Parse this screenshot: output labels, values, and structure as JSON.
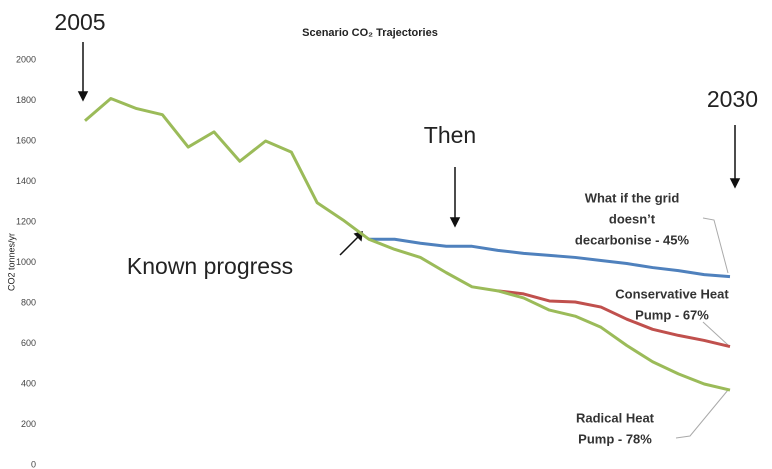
{
  "chart_data": {
    "type": "line",
    "title": "Scenario CO₂ Trajectories",
    "y_label": "CO2 tonnes/yr",
    "categories": [
      null,
      null,
      null,
      null,
      null,
      null,
      null,
      null,
      null,
      null,
      null,
      null,
      null,
      null,
      null,
      null,
      null,
      null,
      null,
      null,
      null,
      null,
      null,
      null,
      null,
      null
    ],
    "ylim": [
      0,
      2000
    ],
    "yticks": [
      0,
      200,
      400,
      600,
      800,
      1000,
      1200,
      1400,
      1600,
      1800,
      2000
    ],
    "series": [
      {
        "color": "#9bbb59",
        "values": [
          1700,
          1810,
          1760,
          1730,
          1570,
          1645,
          1500,
          1600,
          1545,
          1295,
          1210,
          1115,
          1065,
          1025,
          950,
          880,
          860,
          825,
          765,
          735,
          680,
          590,
          510,
          450,
          400,
          370
        ]
      },
      {
        "color": "#4f81bd",
        "values": [
          null,
          null,
          null,
          null,
          null,
          null,
          null,
          null,
          null,
          null,
          null,
          1115,
          1115,
          1095,
          1080,
          1080,
          1060,
          1045,
          1035,
          1025,
          1010,
          995,
          975,
          960,
          940,
          930
        ]
      },
      {
        "color": "#c0504d",
        "values": [
          null,
          null,
          null,
          null,
          null,
          null,
          null,
          null,
          null,
          null,
          null,
          null,
          null,
          null,
          null,
          null,
          860,
          845,
          810,
          805,
          780,
          720,
          670,
          640,
          615,
          585
        ]
      }
    ],
    "annotations": {
      "start": "2005",
      "end": "2030",
      "then": "Then",
      "known": "Known progress",
      "grid": [
        "What if the grid",
        "doesn’t",
        "decarbonise - 45%"
      ],
      "conservative": [
        "Conservative Heat",
        "Pump - 67%"
      ],
      "radical": [
        "Radical Heat",
        "Pump - 78%"
      ]
    }
  }
}
